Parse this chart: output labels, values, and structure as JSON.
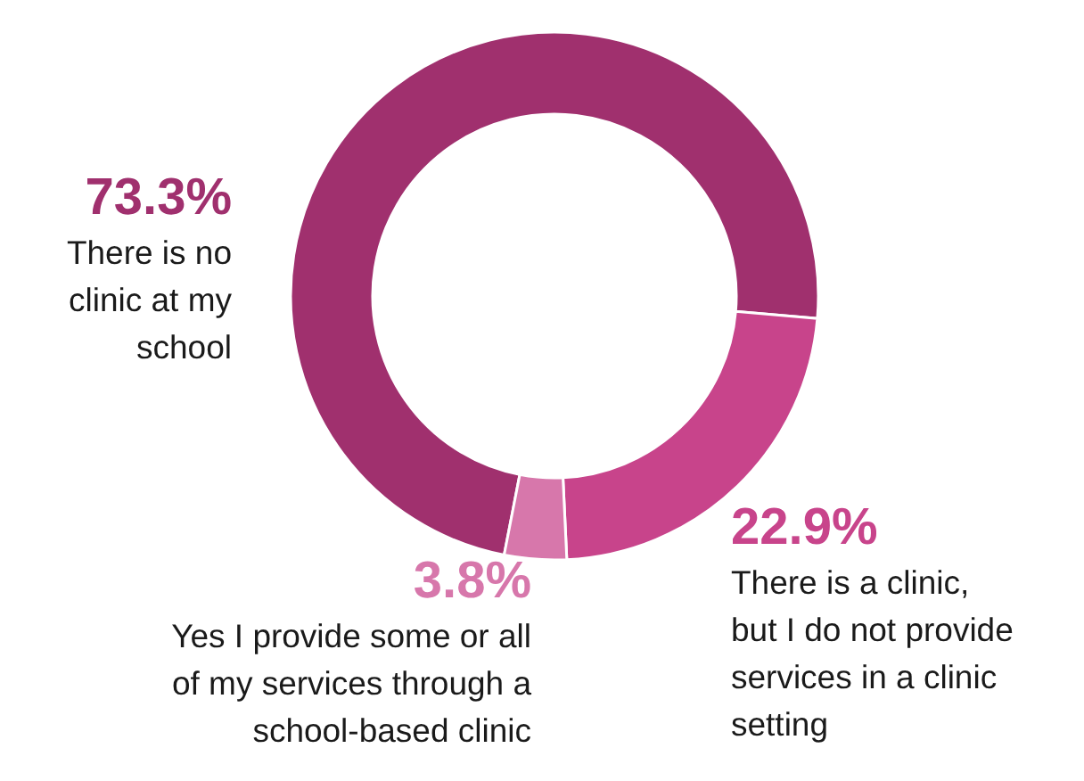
{
  "chart_data": {
    "type": "donut",
    "categories": [
      "There is no\nclinic at my\nschool",
      "There is a clinic,\nbut I do not provide\nservices in a clinic\nsetting",
      "Yes I provide some or all\nof my services through a\nschool-based clinic"
    ],
    "values": [
      73.3,
      22.9,
      3.8
    ],
    "colors": [
      "#a0306e",
      "#c8448b",
      "#d777ab"
    ],
    "value_labels": [
      "73.3%",
      "22.9%",
      "3.8%"
    ]
  }
}
